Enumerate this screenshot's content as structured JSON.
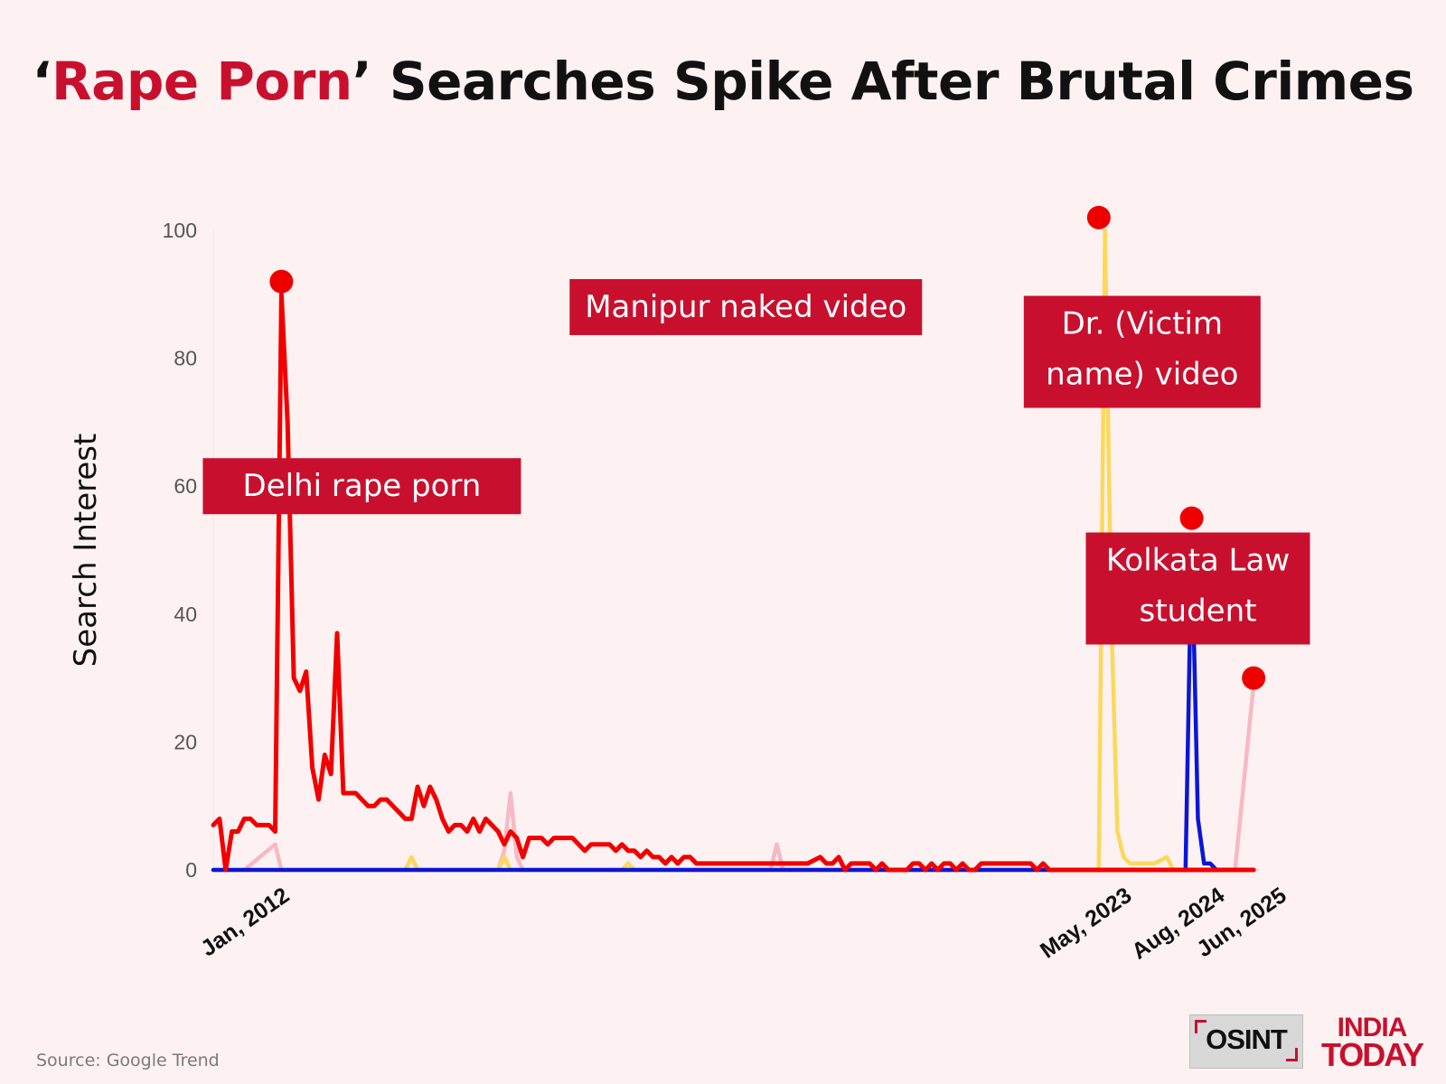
{
  "title": {
    "quote_open": "‘",
    "highlight": "Rape Porn",
    "quote_close": "’",
    "rest": " Searches Spike After Brutal Crimes"
  },
  "source": "Source: Google Trend",
  "logos": {
    "osint": "OSINT",
    "india_today_line1": "INDIA",
    "india_today_line2": "TODAY"
  },
  "colors": {
    "background": "#fdf2f1",
    "accent_red": "#c8102e",
    "delhi_series": "#f20000",
    "manipur_series": "#fcd85c",
    "doctor_series": "#0b16d6",
    "kolkata_series": "#f8b8c4",
    "marker": "#ee0000"
  },
  "chart_data": {
    "type": "line",
    "ylabel": "Search Interest",
    "ylim": [
      0,
      100
    ],
    "yticks": [
      0,
      20,
      40,
      60,
      80,
      100
    ],
    "x_range": [
      "2011-06",
      "2025-07"
    ],
    "xticks": [
      {
        "date": "2012-01",
        "label": "Jan, 2012"
      },
      {
        "date": "2023-05",
        "label": "May, 2023"
      },
      {
        "date": "2024-08",
        "label": "Aug, 2024"
      },
      {
        "date": "2025-06",
        "label": "Jun, 2025"
      }
    ],
    "series": [
      {
        "id": "delhi",
        "color": "#f20000",
        "points": [
          [
            "2011-06",
            7
          ],
          [
            "2011-07",
            8
          ],
          [
            "2011-08",
            0
          ],
          [
            "2011-09",
            6
          ],
          [
            "2011-10",
            6
          ],
          [
            "2011-11",
            8
          ],
          [
            "2011-12",
            8
          ],
          [
            "2012-01",
            7
          ],
          [
            "2012-02",
            7
          ],
          [
            "2012-03",
            7
          ],
          [
            "2012-04",
            6
          ],
          [
            "2012-05",
            90
          ],
          [
            "2012-06",
            70
          ],
          [
            "2012-07",
            30
          ],
          [
            "2012-08",
            28
          ],
          [
            "2012-09",
            31
          ],
          [
            "2012-10",
            16
          ],
          [
            "2012-11",
            11
          ],
          [
            "2012-12",
            18
          ],
          [
            "2013-01",
            15
          ],
          [
            "2013-02",
            37
          ],
          [
            "2013-03",
            12
          ],
          [
            "2013-04",
            12
          ],
          [
            "2013-05",
            12
          ],
          [
            "2013-06",
            11
          ],
          [
            "2013-07",
            10
          ],
          [
            "2013-08",
            10
          ],
          [
            "2013-09",
            11
          ],
          [
            "2013-10",
            11
          ],
          [
            "2013-11",
            10
          ],
          [
            "2013-12",
            9
          ],
          [
            "2014-01",
            8
          ],
          [
            "2014-02",
            8
          ],
          [
            "2014-03",
            13
          ],
          [
            "2014-04",
            10
          ],
          [
            "2014-05",
            13
          ],
          [
            "2014-06",
            11
          ],
          [
            "2014-07",
            8
          ],
          [
            "2014-08",
            6
          ],
          [
            "2014-09",
            7
          ],
          [
            "2014-10",
            7
          ],
          [
            "2014-11",
            6
          ],
          [
            "2014-12",
            8
          ],
          [
            "2015-01",
            6
          ],
          [
            "2015-02",
            8
          ],
          [
            "2015-03",
            7
          ],
          [
            "2015-04",
            6
          ],
          [
            "2015-05",
            4
          ],
          [
            "2015-06",
            6
          ],
          [
            "2015-07",
            5
          ],
          [
            "2015-08",
            2
          ],
          [
            "2015-09",
            5
          ],
          [
            "2015-10",
            5
          ],
          [
            "2015-11",
            5
          ],
          [
            "2015-12",
            4
          ],
          [
            "2016-01",
            5
          ],
          [
            "2016-02",
            5
          ],
          [
            "2016-03",
            5
          ],
          [
            "2016-04",
            5
          ],
          [
            "2016-05",
            4
          ],
          [
            "2016-06",
            3
          ],
          [
            "2016-07",
            4
          ],
          [
            "2016-08",
            4
          ],
          [
            "2016-09",
            4
          ],
          [
            "2016-10",
            4
          ],
          [
            "2016-11",
            3
          ],
          [
            "2016-12",
            4
          ],
          [
            "2017-01",
            3
          ],
          [
            "2017-02",
            3
          ],
          [
            "2017-03",
            2
          ],
          [
            "2017-04",
            3
          ],
          [
            "2017-05",
            2
          ],
          [
            "2017-06",
            2
          ],
          [
            "2017-07",
            1
          ],
          [
            "2017-08",
            2
          ],
          [
            "2017-09",
            1
          ],
          [
            "2017-10",
            2
          ],
          [
            "2017-11",
            2
          ],
          [
            "2017-12",
            1
          ],
          [
            "2018-01",
            1
          ],
          [
            "2018-06",
            1
          ],
          [
            "2018-12",
            1
          ],
          [
            "2019-03",
            1
          ],
          [
            "2019-06",
            1
          ],
          [
            "2019-08",
            2
          ],
          [
            "2019-09",
            1
          ],
          [
            "2019-10",
            1
          ],
          [
            "2019-11",
            2
          ],
          [
            "2019-12",
            0
          ],
          [
            "2020-01",
            1
          ],
          [
            "2020-02",
            1
          ],
          [
            "2020-03",
            1
          ],
          [
            "2020-04",
            1
          ],
          [
            "2020-05",
            0
          ],
          [
            "2020-06",
            1
          ],
          [
            "2020-07",
            0
          ],
          [
            "2020-08",
            0
          ],
          [
            "2020-09",
            0
          ],
          [
            "2020-10",
            0
          ],
          [
            "2020-11",
            1
          ],
          [
            "2020-12",
            1
          ],
          [
            "2021-01",
            0
          ],
          [
            "2021-02",
            1
          ],
          [
            "2021-03",
            0
          ],
          [
            "2021-04",
            1
          ],
          [
            "2021-05",
            1
          ],
          [
            "2021-06",
            0
          ],
          [
            "2021-07",
            1
          ],
          [
            "2021-08",
            0
          ],
          [
            "2021-09",
            0
          ],
          [
            "2021-10",
            1
          ],
          [
            "2021-11",
            1
          ],
          [
            "2021-12",
            1
          ],
          [
            "2022-01",
            1
          ],
          [
            "2022-02",
            1
          ],
          [
            "2022-03",
            1
          ],
          [
            "2022-04",
            1
          ],
          [
            "2022-05",
            1
          ],
          [
            "2022-06",
            1
          ],
          [
            "2022-07",
            0
          ],
          [
            "2022-08",
            1
          ],
          [
            "2022-09",
            0
          ],
          [
            "2022-10",
            0
          ],
          [
            "2025-06",
            0
          ]
        ]
      },
      {
        "id": "manipur",
        "color": "#fcd85c",
        "points": [
          [
            "2011-06",
            0
          ],
          [
            "2014-01",
            0
          ],
          [
            "2014-02",
            2
          ],
          [
            "2014-03",
            0
          ],
          [
            "2015-04",
            0
          ],
          [
            "2015-05",
            2
          ],
          [
            "2015-06",
            0
          ],
          [
            "2016-12",
            0
          ],
          [
            "2017-01",
            1
          ],
          [
            "2017-02",
            0
          ],
          [
            "2023-03",
            0
          ],
          [
            "2023-05",
            0
          ],
          [
            "2023-06",
            100
          ],
          [
            "2023-07",
            40
          ],
          [
            "2023-08",
            6
          ],
          [
            "2023-09",
            2
          ],
          [
            "2023-10",
            1
          ],
          [
            "2023-11",
            1
          ],
          [
            "2024-02",
            1
          ],
          [
            "2024-04",
            2
          ],
          [
            "2024-05",
            0
          ],
          [
            "2025-06",
            0
          ]
        ]
      },
      {
        "id": "doctor",
        "color": "#0b16d6",
        "points": [
          [
            "2011-06",
            0
          ],
          [
            "2024-07",
            0
          ],
          [
            "2024-08",
            52
          ],
          [
            "2024-09",
            8
          ],
          [
            "2024-10",
            1
          ],
          [
            "2024-11",
            1
          ],
          [
            "2024-12",
            0
          ],
          [
            "2025-06",
            0
          ]
        ]
      },
      {
        "id": "kolkata",
        "color": "#f8b8c4",
        "points": [
          [
            "2011-06",
            0
          ],
          [
            "2011-11",
            0
          ],
          [
            "2012-04",
            4
          ],
          [
            "2012-05",
            0
          ],
          [
            "2015-04",
            0
          ],
          [
            "2015-05",
            3
          ],
          [
            "2015-06",
            12
          ],
          [
            "2015-07",
            2
          ],
          [
            "2015-08",
            0
          ],
          [
            "2016-12",
            0
          ],
          [
            "2017-01",
            1
          ],
          [
            "2017-02",
            0
          ],
          [
            "2018-12",
            0
          ],
          [
            "2019-01",
            4
          ],
          [
            "2019-02",
            0
          ],
          [
            "2025-03",
            0
          ],
          [
            "2025-06",
            29
          ]
        ]
      }
    ],
    "markers": [
      {
        "date": "2012-05",
        "value": 92
      },
      {
        "date": "2023-05",
        "value": 102
      },
      {
        "date": "2024-08",
        "value": 55
      },
      {
        "date": "2025-06",
        "value": 30
      }
    ],
    "annotations": [
      {
        "text": "Delhi rape porn",
        "anchor": [
          "2013-06",
          60
        ]
      },
      {
        "text": "Manipur naked video",
        "anchor": [
          "2018-08",
          88
        ]
      },
      {
        "text": "Dr. (Victim name) video",
        "anchor": [
          "2023-12",
          81
        ]
      },
      {
        "text": "Kolkata Law student",
        "anchor": [
          "2024-09",
          44
        ]
      }
    ]
  }
}
